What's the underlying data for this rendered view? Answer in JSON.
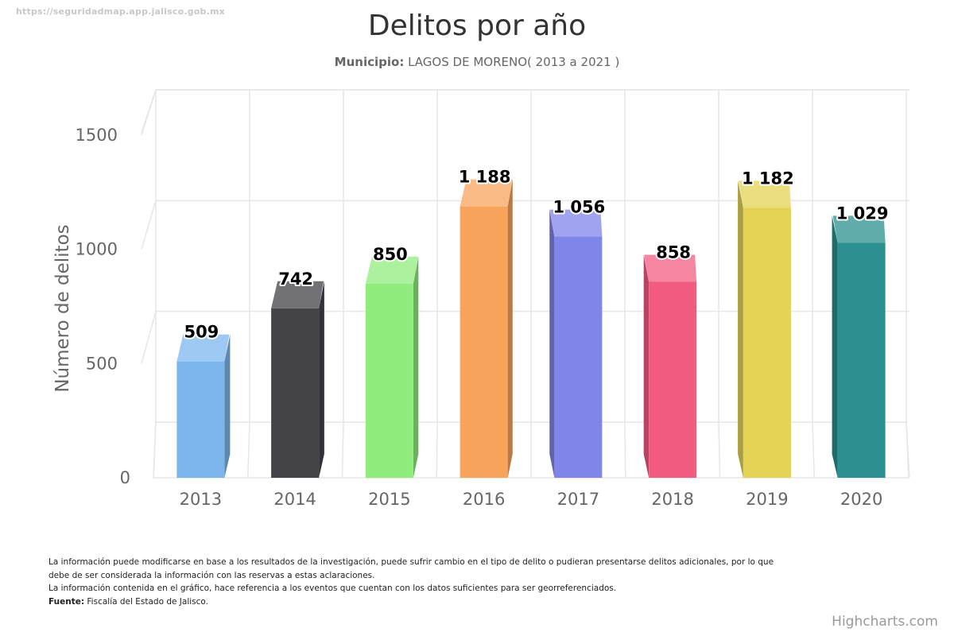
{
  "page": {
    "url": "https://seguridadmap.app.jalisco.gob.mx",
    "credits": "Highcharts.com"
  },
  "subtitle": {
    "label": "Municipio:",
    "value": "LAGOS DE MORENO( 2013 a 2021 )"
  },
  "footnotes": {
    "line1": "La información puede modificarse en base a los resultados de la investigación, puede sufrir cambio en el tipo de delito o pudieran presentarse delitos adicionales, por lo que debe de ser considerada la información con las reservas a estas aclaraciones.",
    "line2": "La información contenida en el gráfico, hace referencia a los eventos que cuentan con los datos suficientes para ser georreferenciados.",
    "source_label": "Fuente:",
    "source_value": "Fiscalía del Estado de Jalisco."
  },
  "chart_data": {
    "type": "bar",
    "title": "Delitos por año",
    "xlabel": "",
    "ylabel": "Número de delitos",
    "categories": [
      "2013",
      "2014",
      "2015",
      "2016",
      "2017",
      "2018",
      "2019",
      "2020"
    ],
    "values": [
      509,
      742,
      850,
      1188,
      1056,
      858,
      1182,
      1029
    ],
    "data_labels": [
      "509",
      "742",
      "850",
      "1 188",
      "1 056",
      "858",
      "1 182",
      "1 029"
    ],
    "y_ticks": [
      0,
      500,
      1000,
      1500
    ],
    "ylim": [
      0,
      1500
    ],
    "grid": true,
    "legend": "none",
    "colors": [
      "#7cb5ec",
      "#434348",
      "#90ed7d",
      "#f7a35c",
      "#8085e9",
      "#f15c80",
      "#e4d354",
      "#2b908f"
    ]
  }
}
